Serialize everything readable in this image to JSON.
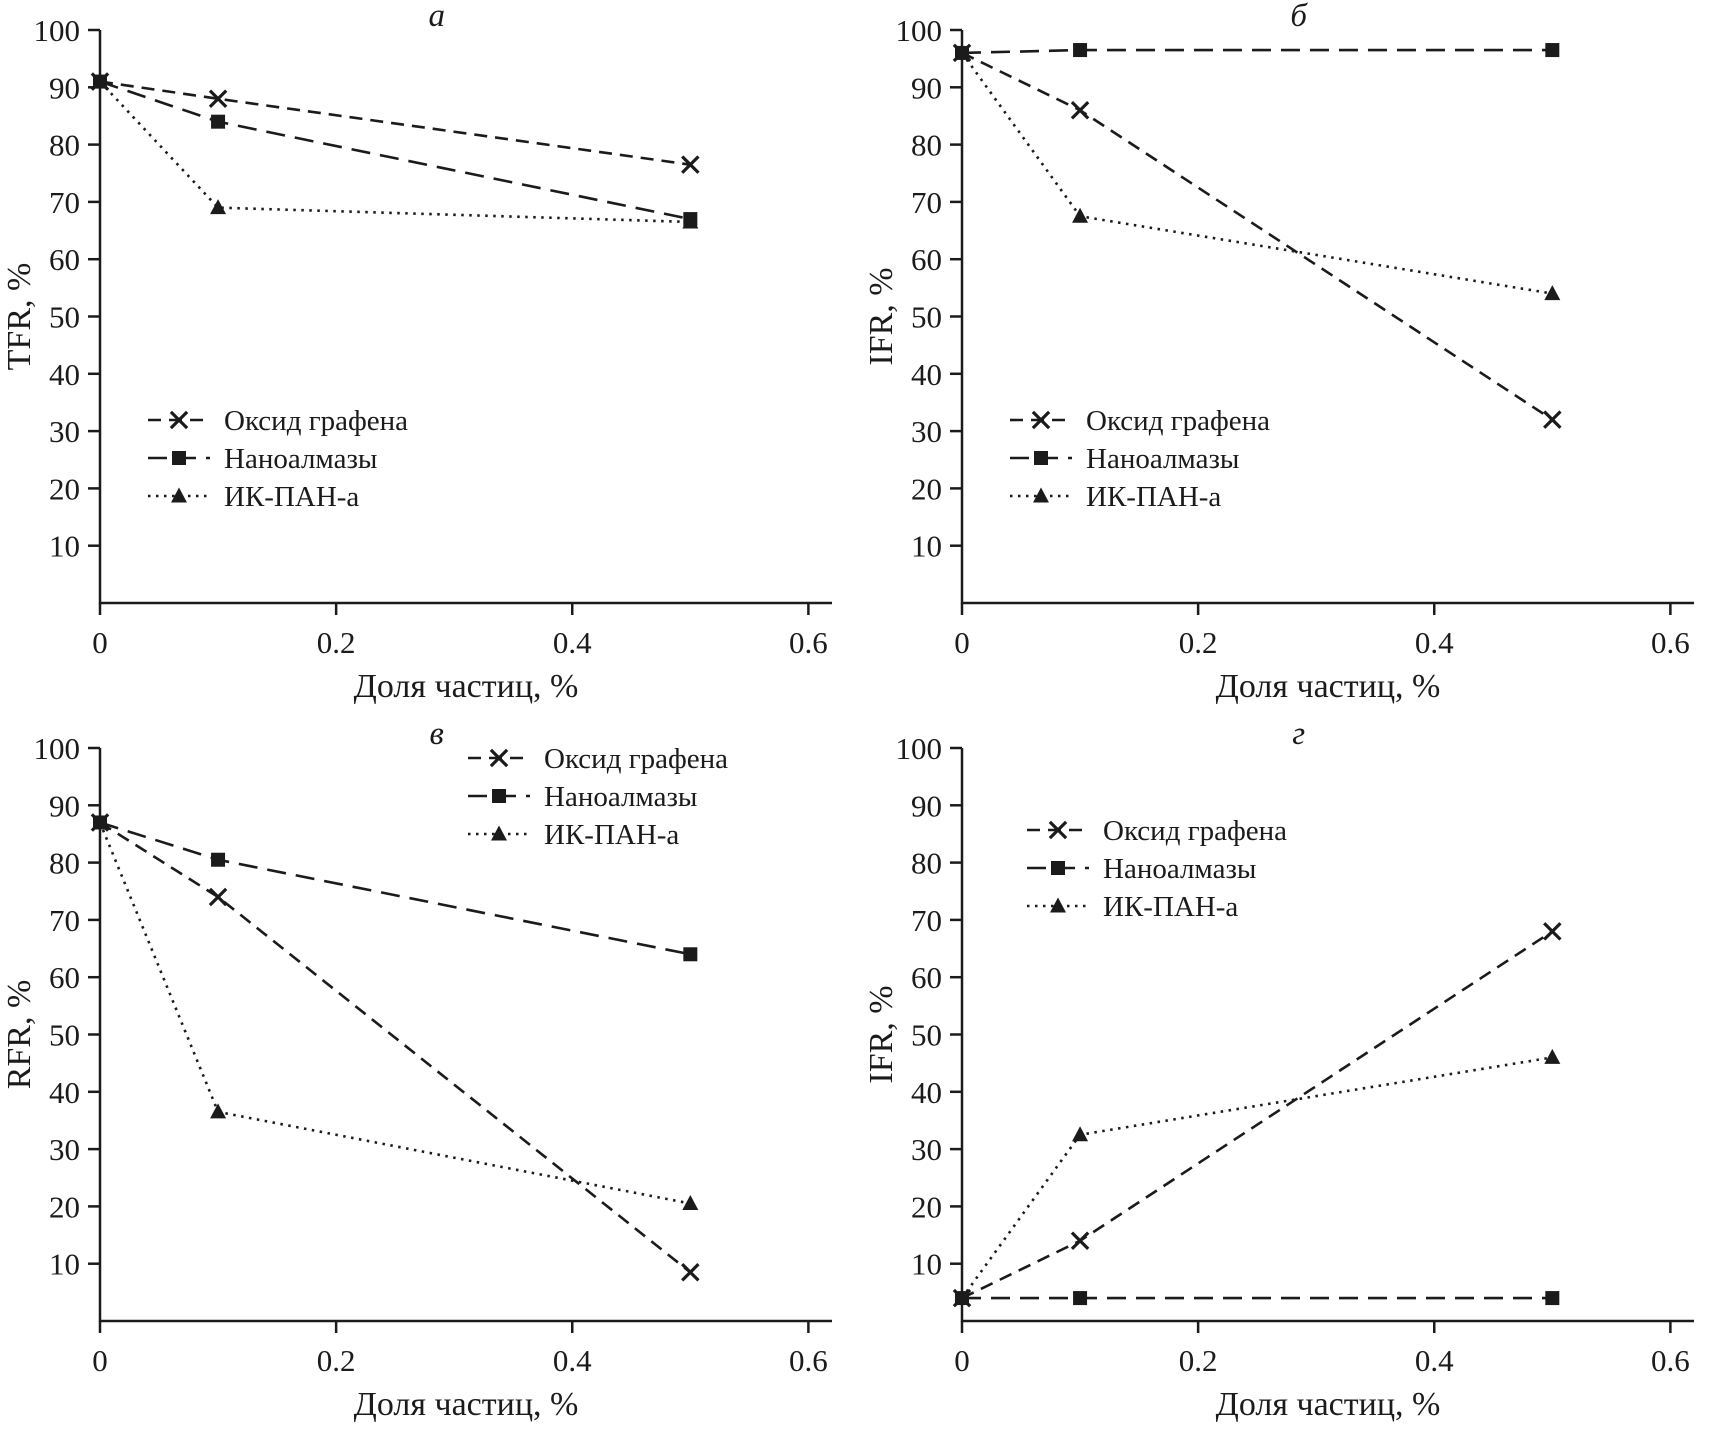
{
  "figure": {
    "background": "#ffffff",
    "ink": "#1b1b1b",
    "xlabel": "Доля частиц, %",
    "x_ticks": [
      0,
      0.2,
      0.4,
      0.6
    ],
    "y_ticks": [
      10,
      20,
      30,
      40,
      50,
      60,
      70,
      80,
      90,
      100
    ],
    "xlim": [
      0,
      0.62
    ],
    "ylim": [
      0,
      100
    ],
    "series_styles": [
      {
        "name": "Оксид графена",
        "marker": "x",
        "dash": "13,8"
      },
      {
        "name": "Наноалмазы",
        "marker": "square",
        "dash": "19,10"
      },
      {
        "name": "ИК-ПАН-а",
        "marker": "triangle",
        "dash": "2.5,5.5"
      }
    ]
  },
  "chart_data": [
    {
      "type": "line",
      "title": "а",
      "ylabel": "TFR, %",
      "xlabel": "Доля частиц, %",
      "x": [
        0,
        0.1,
        0.5
      ],
      "series": [
        {
          "name": "Оксид графена",
          "values": [
            91,
            88,
            76.5
          ]
        },
        {
          "name": "Наноалмазы",
          "values": [
            91,
            84,
            67
          ]
        },
        {
          "name": "ИК-ПАН-а",
          "values": [
            91,
            69,
            66.5
          ]
        }
      ],
      "xlim": [
        0,
        0.62
      ],
      "ylim": [
        0,
        100
      ],
      "legend_position": "lower-left",
      "legend_anchor": {
        "x": 148,
        "y": 420
      }
    },
    {
      "type": "line",
      "title": "б",
      "ylabel": "IFR, %",
      "xlabel": "Доля частиц, %",
      "x": [
        0,
        0.1,
        0.5
      ],
      "series": [
        {
          "name": "Оксид графена",
          "values": [
            96,
            86,
            32
          ]
        },
        {
          "name": "Наноалмазы",
          "values": [
            96,
            96.5,
            96.5
          ]
        },
        {
          "name": "ИК-ПАН-а",
          "values": [
            96,
            67.5,
            54
          ]
        }
      ],
      "xlim": [
        0,
        0.62
      ],
      "ylim": [
        0,
        100
      ],
      "legend_position": "lower-left",
      "legend_anchor": {
        "x": 148,
        "y": 420
      }
    },
    {
      "type": "line",
      "title": "в",
      "ylabel": "RFR, %",
      "xlabel": "Доля частиц, %",
      "x": [
        0,
        0.1,
        0.5
      ],
      "series": [
        {
          "name": "Оксид графена",
          "values": [
            87,
            74,
            8.5
          ]
        },
        {
          "name": "Наноалмазы",
          "values": [
            87,
            80.5,
            64
          ]
        },
        {
          "name": "ИК-ПАН-а",
          "values": [
            87,
            36.5,
            20.5
          ]
        }
      ],
      "xlim": [
        0,
        0.62
      ],
      "ylim": [
        0,
        100
      ],
      "legend_position": "upper-right",
      "legend_anchor": {
        "x": 468,
        "y": 40
      }
    },
    {
      "type": "line",
      "title": "г",
      "ylabel": "IFR, %",
      "xlabel": "Доля частиц, %",
      "x": [
        0,
        0.1,
        0.5
      ],
      "series": [
        {
          "name": "Оксид графена",
          "values": [
            4,
            14,
            68
          ]
        },
        {
          "name": "Наноалмазы",
          "values": [
            4,
            4,
            4
          ]
        },
        {
          "name": "ИК-ПАН-а",
          "values": [
            4,
            32.5,
            46
          ]
        }
      ],
      "xlim": [
        0,
        0.62
      ],
      "ylim": [
        0,
        100
      ],
      "legend_position": "upper-left",
      "legend_anchor": {
        "x": 165,
        "y": 112
      }
    }
  ]
}
